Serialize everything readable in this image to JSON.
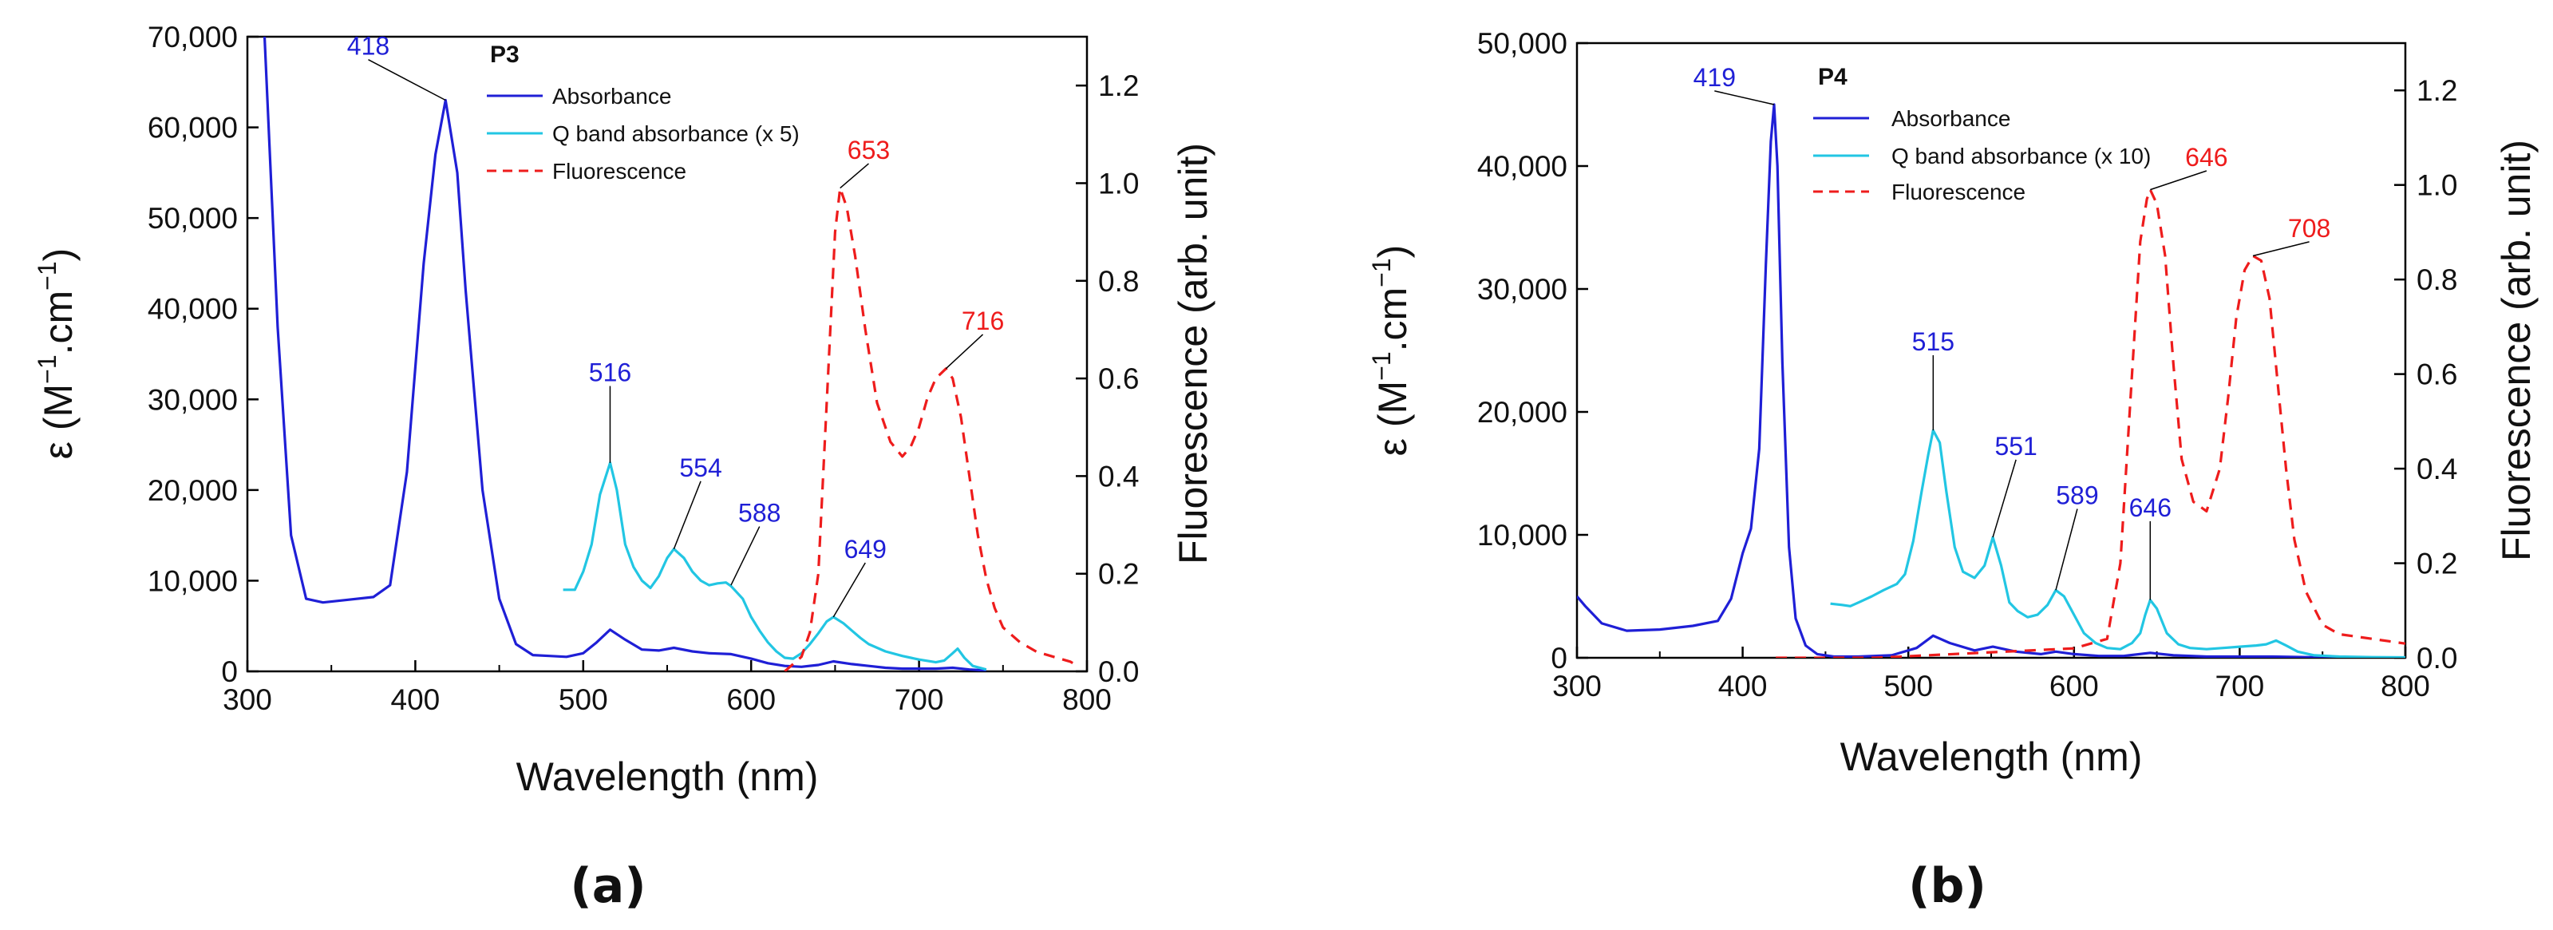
{
  "chart_data": [
    {
      "type": "line",
      "panel_label": "(a)",
      "title": "P3",
      "xlabel": "Wavelength (nm)",
      "ylabel_left": "ε (M",
      "ylabel_left_sup1": "−1",
      "ylabel_left_mid": ".cm",
      "ylabel_left_sup2": "−1",
      "ylabel_left_end": ")",
      "ylabel_right": "Fluorescence (arb. unit)",
      "xlim": [
        300,
        800
      ],
      "ylim_left": [
        0,
        70000
      ],
      "ylim_right": [
        0,
        1.3
      ],
      "xticks": [
        "300",
        "400",
        "500",
        "600",
        "700",
        "800"
      ],
      "xtick_values": [
        300,
        400,
        500,
        600,
        700,
        800
      ],
      "yticks_left": [
        "0",
        "10,000",
        "20,000",
        "30,000",
        "40,000",
        "50,000",
        "60,000",
        "70,000"
      ],
      "ytick_left_values": [
        0,
        10000,
        20000,
        30000,
        40000,
        50000,
        60000,
        70000
      ],
      "yticks_right": [
        "0.0",
        "0.2",
        "0.4",
        "0.6",
        "0.8",
        "1.0",
        "1.2"
      ],
      "ytick_right_values": [
        0,
        0.2,
        0.4,
        0.6,
        0.8,
        1.0,
        1.2
      ],
      "legend": [
        "Absorbance",
        "Q band absorbance (x 5)",
        "Fluorescence"
      ],
      "series": [
        {
          "name": "Absorbance",
          "color": "#1f1fd6",
          "dash": "none",
          "axis": "left",
          "x": [
            310,
            318,
            326,
            335,
            345,
            360,
            375,
            385,
            395,
            405,
            412,
            418,
            425,
            430,
            440,
            450,
            460,
            470,
            480,
            490,
            500,
            508,
            516,
            525,
            535,
            545,
            554,
            565,
            575,
            588,
            600,
            610,
            620,
            630,
            640,
            649,
            660,
            670,
            680,
            690,
            700,
            710,
            720,
            730,
            740
          ],
          "y": [
            71000,
            38000,
            15000,
            8000,
            7600,
            7900,
            8200,
            9500,
            22000,
            45000,
            57000,
            63000,
            55000,
            42000,
            20000,
            8000,
            3000,
            1800,
            1700,
            1600,
            2000,
            3200,
            4600,
            3500,
            2400,
            2300,
            2600,
            2200,
            2000,
            1900,
            1400,
            900,
            600,
            500,
            700,
            1100,
            800,
            600,
            400,
            300,
            300,
            300,
            400,
            200,
            100
          ]
        },
        {
          "name": "Q band absorbance (x 5)",
          "color": "#22c6e3",
          "dash": "none",
          "axis": "left",
          "x": [
            488,
            495,
            500,
            505,
            510,
            516,
            520,
            525,
            530,
            535,
            540,
            545,
            550,
            554,
            560,
            565,
            570,
            575,
            580,
            585,
            588,
            595,
            600,
            605,
            610,
            615,
            620,
            625,
            630,
            635,
            640,
            645,
            649,
            655,
            660,
            665,
            670,
            680,
            690,
            700,
            710,
            715,
            720,
            723,
            727,
            732,
            740
          ],
          "y": [
            9000,
            9000,
            11000,
            14000,
            19500,
            23000,
            20000,
            14000,
            11500,
            10000,
            9200,
            10500,
            12500,
            13500,
            12500,
            11000,
            10000,
            9500,
            9700,
            9800,
            9400,
            8000,
            6000,
            4500,
            3200,
            2200,
            1500,
            1400,
            2000,
            3000,
            4200,
            5500,
            6000,
            5300,
            4500,
            3700,
            3000,
            2200,
            1700,
            1300,
            1000,
            1200,
            2000,
            2500,
            1500,
            600,
            200
          ]
        },
        {
          "name": "Fluorescence",
          "color": "#ee1c1c",
          "dash": "14,10",
          "axis": "right",
          "x": [
            620,
            630,
            635,
            640,
            645,
            650,
            653,
            657,
            662,
            668,
            675,
            683,
            690,
            695,
            700,
            705,
            710,
            716,
            720,
            725,
            730,
            735,
            740,
            745,
            750,
            760,
            770,
            780,
            790,
            795
          ],
          "y": [
            0.0,
            0.03,
            0.08,
            0.2,
            0.55,
            0.9,
            0.99,
            0.95,
            0.85,
            0.7,
            0.55,
            0.47,
            0.44,
            0.46,
            0.5,
            0.56,
            0.6,
            0.62,
            0.6,
            0.52,
            0.4,
            0.28,
            0.19,
            0.13,
            0.09,
            0.06,
            0.04,
            0.03,
            0.02,
            0.01
          ]
        }
      ],
      "annotations": [
        {
          "text": "418",
          "color": "#1f1fd6",
          "x": 418,
          "y": 63000,
          "axis": "left",
          "tx": 372,
          "ty": 68000
        },
        {
          "text": "516",
          "color": "#1f1fd6",
          "x": 516,
          "y": 23000,
          "axis": "left",
          "tx": 516,
          "ty": 32000
        },
        {
          "text": "554",
          "color": "#1f1fd6",
          "x": 554,
          "y": 13500,
          "axis": "left",
          "tx": 570,
          "ty": 21500
        },
        {
          "text": "588",
          "color": "#1f1fd6",
          "x": 588,
          "y": 9500,
          "axis": "left",
          "tx": 605,
          "ty": 16500
        },
        {
          "text": "649",
          "color": "#1f1fd6",
          "x": 649,
          "y": 6000,
          "axis": "left",
          "tx": 668,
          "ty": 12500
        },
        {
          "text": "653",
          "color": "#ee1c1c",
          "x": 653,
          "y": 0.99,
          "axis": "right",
          "tx": 670,
          "ty": 1.05
        },
        {
          "text": "716",
          "color": "#ee1c1c",
          "x": 716,
          "y": 0.62,
          "axis": "right",
          "tx": 738,
          "ty": 0.7
        }
      ]
    },
    {
      "type": "line",
      "panel_label": "(b)",
      "title": "P4",
      "xlabel": "Wavelength (nm)",
      "ylabel_left": "ε (M",
      "ylabel_left_sup1": "−1",
      "ylabel_left_mid": ".cm",
      "ylabel_left_sup2": "−1",
      "ylabel_left_end": ")",
      "ylabel_right": "Fluorescence (arb. unit)",
      "xlim": [
        300,
        800
      ],
      "ylim_left": [
        0,
        50000
      ],
      "ylim_right": [
        0,
        1.3
      ],
      "xticks": [
        "300",
        "400",
        "500",
        "600",
        "700",
        "800"
      ],
      "xtick_values": [
        300,
        400,
        500,
        600,
        700,
        800
      ],
      "yticks_left": [
        "0",
        "10,000",
        "20,000",
        "30,000",
        "40,000",
        "50,000"
      ],
      "ytick_left_values": [
        0,
        10000,
        20000,
        30000,
        40000,
        50000
      ],
      "yticks_right": [
        "0.0",
        "0.2",
        "0.4",
        "0.6",
        "0.8",
        "1.0",
        "1.2"
      ],
      "ytick_right_values": [
        0,
        0.2,
        0.4,
        0.6,
        0.8,
        1.0,
        1.2
      ],
      "legend": [
        "Absorbance",
        "Q band absorbance (x 10)",
        "Fluorescence"
      ],
      "series": [
        {
          "name": "Absorbance",
          "color": "#1f1fd6",
          "dash": "none",
          "axis": "left",
          "x": [
            300,
            305,
            315,
            330,
            350,
            370,
            385,
            393,
            400,
            405,
            410,
            414,
            417,
            419,
            421,
            424,
            428,
            432,
            438,
            445,
            455,
            470,
            490,
            505,
            515,
            525,
            540,
            551,
            565,
            580,
            589,
            600,
            615,
            630,
            646,
            660,
            680,
            700,
            720,
            740,
            760,
            780,
            800
          ],
          "y": [
            5000,
            4200,
            2800,
            2200,
            2300,
            2600,
            3000,
            4800,
            8500,
            10500,
            17000,
            32000,
            42000,
            45000,
            40000,
            24000,
            9000,
            3200,
            1000,
            300,
            100,
            100,
            200,
            800,
            1800,
            1200,
            600,
            900,
            500,
            300,
            500,
            300,
            150,
            150,
            400,
            200,
            100,
            100,
            100,
            50,
            30,
            20,
            10
          ]
        },
        {
          "name": "Q band absorbance (x 10)",
          "color": "#22c6e3",
          "dash": "none",
          "axis": "left",
          "x": [
            453,
            460,
            465,
            470,
            478,
            485,
            493,
            498,
            503,
            508,
            512,
            515,
            519,
            523,
            528,
            533,
            540,
            546,
            551,
            556,
            561,
            566,
            572,
            578,
            584,
            589,
            594,
            600,
            606,
            613,
            620,
            628,
            635,
            640,
            643,
            646,
            650,
            656,
            663,
            670,
            680,
            690,
            700,
            710,
            716,
            722,
            728,
            735,
            745,
            760,
            780,
            800
          ],
          "y": [
            4400,
            4300,
            4200,
            4500,
            5000,
            5500,
            6000,
            6800,
            9500,
            13500,
            16500,
            18500,
            17500,
            13500,
            9000,
            7000,
            6500,
            7500,
            9800,
            7500,
            4500,
            3800,
            3300,
            3500,
            4300,
            5500,
            5000,
            3500,
            2000,
            1200,
            800,
            700,
            1200,
            2000,
            3500,
            4700,
            4000,
            2000,
            1100,
            800,
            700,
            800,
            900,
            1000,
            1100,
            1400,
            1000,
            500,
            200,
            100,
            50,
            30
          ]
        },
        {
          "name": "Fluorescence",
          "color": "#ee1c1c",
          "dash": "14,10",
          "axis": "right",
          "x": [
            420,
            480,
            540,
            600,
            620,
            628,
            635,
            640,
            644,
            646,
            650,
            655,
            660,
            665,
            672,
            680,
            688,
            693,
            698,
            703,
            708,
            713,
            718,
            723,
            728,
            733,
            740,
            750,
            760,
            780,
            800
          ],
          "y": [
            0.0,
            0.0,
            0.01,
            0.02,
            0.04,
            0.2,
            0.6,
            0.88,
            0.97,
            0.99,
            0.96,
            0.85,
            0.62,
            0.42,
            0.33,
            0.31,
            0.4,
            0.55,
            0.72,
            0.82,
            0.85,
            0.84,
            0.76,
            0.58,
            0.4,
            0.25,
            0.14,
            0.07,
            0.05,
            0.04,
            0.03
          ]
        }
      ],
      "annotations": [
        {
          "text": "419",
          "color": "#1f1fd6",
          "x": 419,
          "y": 45000,
          "axis": "left",
          "tx": 383,
          "ty": 46500
        },
        {
          "text": "515",
          "color": "#1f1fd6",
          "x": 515,
          "y": 18500,
          "axis": "left",
          "tx": 515,
          "ty": 25000
        },
        {
          "text": "551",
          "color": "#1f1fd6",
          "x": 551,
          "y": 9800,
          "axis": "left",
          "tx": 565,
          "ty": 16500
        },
        {
          "text": "589",
          "color": "#1f1fd6",
          "x": 589,
          "y": 5500,
          "axis": "left",
          "tx": 602,
          "ty": 12500
        },
        {
          "text": "646",
          "color": "#1f1fd6",
          "x": 646,
          "y": 4700,
          "axis": "left",
          "tx": 646,
          "ty": 11500
        },
        {
          "text": "646",
          "color": "#ee1c1c",
          "x": 646,
          "y": 0.99,
          "axis": "right",
          "tx": 680,
          "ty": 1.04
        },
        {
          "text": "708",
          "color": "#ee1c1c",
          "x": 708,
          "y": 0.85,
          "axis": "right",
          "tx": 742,
          "ty": 0.89
        }
      ]
    }
  ]
}
